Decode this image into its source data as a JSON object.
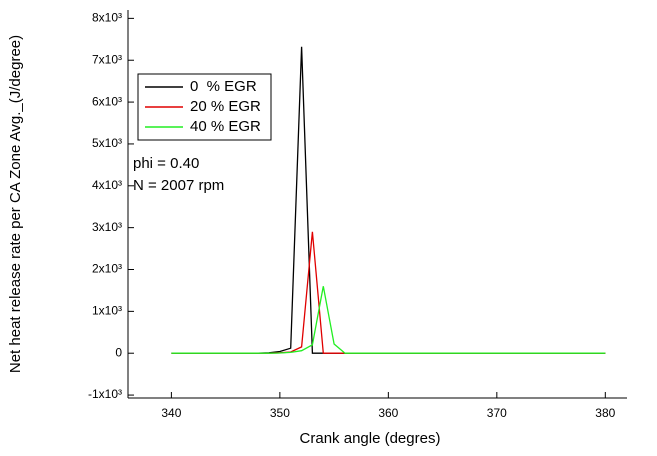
{
  "chart_data": {
    "type": "line",
    "x_label": "Crank angle (degres)",
    "y_label": "Net heat release rate per CA Zone Avg._(J/degree)",
    "x": [
      340,
      348,
      349,
      350,
      351,
      352,
      353,
      354,
      355,
      356,
      380
    ],
    "series": [
      {
        "name": "0  % EGR",
        "color": "#000000",
        "values": [
          0,
          0,
          10,
          40,
          120,
          7320,
          0,
          0,
          0,
          0,
          0
        ]
      },
      {
        "name": "20 % EGR",
        "color": "#e00000",
        "values": [
          0,
          0,
          0,
          10,
          30,
          150,
          2900,
          0,
          0,
          0,
          0
        ]
      },
      {
        "name": "40 % EGR",
        "color": "#22ee22",
        "values": [
          0,
          0,
          0,
          5,
          20,
          60,
          200,
          1600,
          220,
          0,
          0
        ]
      }
    ],
    "xlim": [
      336,
      382
    ],
    "xticks": [
      340,
      350,
      360,
      370,
      380
    ],
    "ylim": [
      -1070,
      8200
    ],
    "yticks": [
      {
        "value": -1000,
        "label": "-1x10³"
      },
      0,
      {
        "value": 1000,
        "label": "1x10³"
      },
      {
        "value": 2000,
        "label": "2x10³"
      },
      {
        "value": 3000,
        "label": "3x10³"
      },
      {
        "value": 4000,
        "label": "4x10³"
      },
      {
        "value": 5000,
        "label": "5x10³"
      },
      {
        "value": 6000,
        "label": "6x10³"
      },
      {
        "value": 7000,
        "label": "7x10³"
      },
      {
        "value": 8000,
        "label": "8x10³"
      }
    ],
    "annotations": [
      "phi = 0.40",
      "N = 2007 rpm"
    ]
  }
}
